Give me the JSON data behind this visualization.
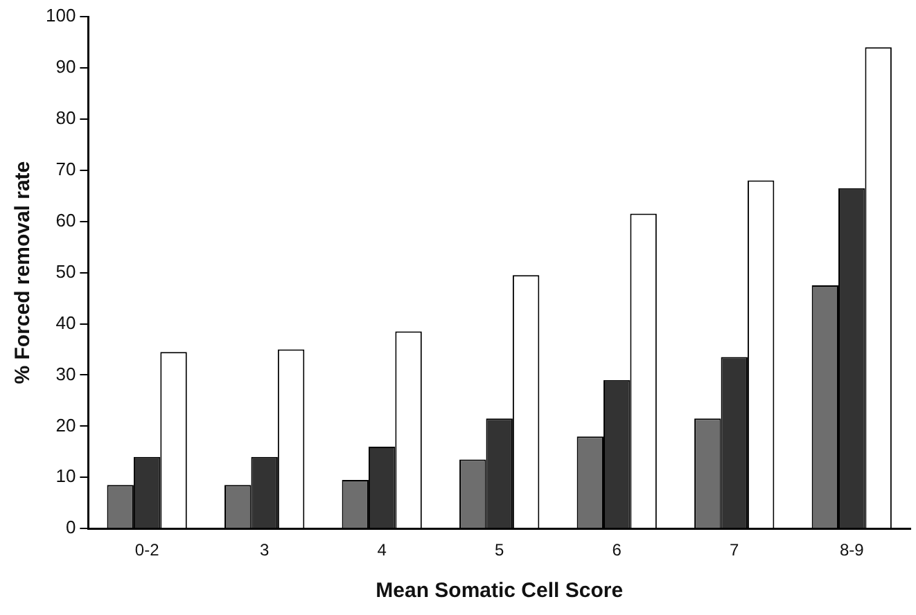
{
  "chart_data": {
    "type": "bar",
    "xlabel": "Mean Somatic Cell Score",
    "ylabel": "% Forced removal rate",
    "categories": [
      "0-2",
      "3",
      "4",
      "5",
      "6",
      "7",
      "8-9"
    ],
    "series": [
      {
        "color": "#6e6e6e",
        "values": [
          8.5,
          8.5,
          9.5,
          13.5,
          18,
          21.5,
          47.5
        ]
      },
      {
        "color": "#333333",
        "values": [
          14,
          14,
          16,
          21.5,
          29,
          33.5,
          66.5
        ]
      },
      {
        "color": "#ffffff",
        "values": [
          34.5,
          35,
          38.5,
          49.5,
          61.5,
          68,
          94
        ]
      }
    ],
    "ylim": [
      0,
      100
    ],
    "yticks": [
      0,
      10,
      20,
      30,
      40,
      50,
      60,
      70,
      80,
      90,
      100
    ],
    "grid": false,
    "legend": false
  }
}
